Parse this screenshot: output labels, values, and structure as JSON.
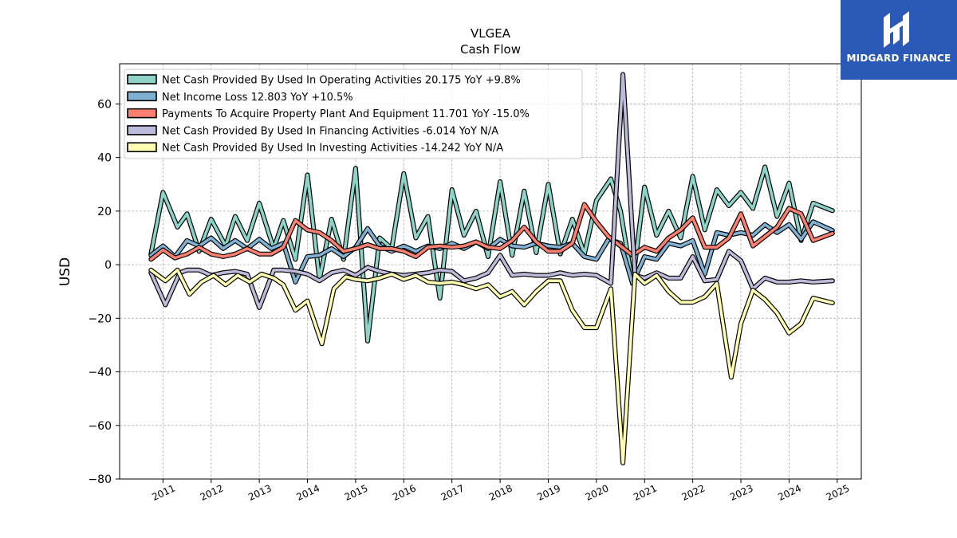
{
  "brand": {
    "name": "MIDGARD FINANCE",
    "color": "#2b59b8"
  },
  "chart_data": {
    "type": "line",
    "title": "VLGEA",
    "subtitle": "Cash Flow",
    "ylabel": "USD",
    "xlabel": "",
    "ylim": [
      -80,
      75
    ],
    "xlim": [
      2010.1,
      2025.5
    ],
    "yticks": [
      -80,
      -60,
      -40,
      -20,
      0,
      20,
      40,
      60
    ],
    "xticks": [
      2011,
      2012,
      2013,
      2014,
      2015,
      2016,
      2017,
      2018,
      2019,
      2020,
      2021,
      2022,
      2023,
      2024,
      2025
    ],
    "grid": true,
    "legend_position": "top-left",
    "series": [
      {
        "name": "Net Cash Provided By Used In Operating Activities",
        "legend": "Net Cash Provided By Used In Operating Activities  20.175 YoY +9.8%",
        "color": "#8dd3c7",
        "x": [
          2010.75,
          2011.0,
          2011.3,
          2011.5,
          2011.75,
          2012.0,
          2012.3,
          2012.5,
          2012.75,
          2013.0,
          2013.3,
          2013.5,
          2013.75,
          2014.0,
          2014.25,
          2014.5,
          2014.75,
          2015.0,
          2015.25,
          2015.5,
          2015.75,
          2016.0,
          2016.25,
          2016.5,
          2016.75,
          2017.0,
          2017.25,
          2017.5,
          2017.75,
          2018.0,
          2018.25,
          2018.5,
          2018.75,
          2019.0,
          2019.25,
          2019.5,
          2019.75,
          2020.0,
          2020.3,
          2020.5,
          2020.75,
          2021.0,
          2021.25,
          2021.5,
          2021.75,
          2022.0,
          2022.25,
          2022.5,
          2022.75,
          2023.0,
          2023.25,
          2023.5,
          2023.75,
          2024.0,
          2024.25,
          2024.5,
          2024.9
        ],
        "values": [
          4.0,
          27.0,
          14.0,
          19.0,
          5.0,
          17.0,
          7.0,
          18.0,
          9.0,
          23.0,
          6.0,
          16.5,
          2.0,
          33.5,
          -5.5,
          17.0,
          2.0,
          36.0,
          -28.5,
          10.0,
          6.0,
          34.0,
          10.0,
          18.0,
          -12.5,
          28.0,
          11.0,
          20.0,
          3.0,
          31.0,
          3.5,
          27.5,
          4.5,
          30.0,
          4.0,
          17.0,
          4.0,
          24.0,
          32.0,
          20.0,
          -7.0,
          29.0,
          11.0,
          20.0,
          10.0,
          33.0,
          13.0,
          28.0,
          22.0,
          27.0,
          21.0,
          36.5,
          18.0,
          30.5,
          9.0,
          23.0,
          20.175
        ]
      },
      {
        "name": "Net Income Loss",
        "legend": "Net Income Loss  12.803 YoY +10.5%",
        "color": "#80b1d3",
        "x": [
          2010.75,
          2011.0,
          2011.25,
          2011.5,
          2011.75,
          2012.0,
          2012.25,
          2012.5,
          2012.75,
          2013.0,
          2013.25,
          2013.5,
          2013.75,
          2014.0,
          2014.25,
          2014.5,
          2014.75,
          2015.0,
          2015.25,
          2015.5,
          2015.75,
          2016.0,
          2016.25,
          2016.5,
          2016.75,
          2017.0,
          2017.25,
          2017.5,
          2017.75,
          2018.0,
          2018.25,
          2018.5,
          2018.75,
          2019.0,
          2019.25,
          2019.5,
          2019.75,
          2020.0,
          2020.25,
          2020.5,
          2020.75,
          2021.0,
          2021.25,
          2021.5,
          2021.75,
          2022.0,
          2022.25,
          2022.5,
          2022.75,
          2023.0,
          2023.25,
          2023.5,
          2023.75,
          2024.0,
          2024.25,
          2024.5,
          2024.9
        ],
        "values": [
          3.5,
          7.0,
          3.0,
          9.0,
          7.0,
          10.0,
          6.0,
          9.0,
          6.0,
          9.5,
          6.0,
          8.0,
          -6.5,
          3.0,
          3.5,
          6.0,
          3.0,
          6.5,
          13.5,
          7.0,
          5.0,
          7.0,
          5.0,
          7.0,
          6.0,
          8.0,
          6.0,
          8.5,
          6.0,
          9.5,
          7.0,
          6.5,
          8.0,
          7.0,
          6.5,
          8.0,
          3.0,
          2.0,
          9.5,
          8.0,
          -7.0,
          3.0,
          2.0,
          8.0,
          7.0,
          9.0,
          -3.5,
          12.0,
          11.0,
          12.0,
          11.0,
          15.0,
          12.0,
          15.0,
          9.5,
          16.0,
          12.803
        ]
      },
      {
        "name": "Payments To Acquire Property Plant And Equipment",
        "legend": "Payments To Acquire Property Plant And Equipment  11.701 YoY -15.0%",
        "color": "#fb8072",
        "x": [
          2010.75,
          2011.0,
          2011.25,
          2011.5,
          2011.75,
          2012.0,
          2012.25,
          2012.5,
          2012.75,
          2013.0,
          2013.25,
          2013.5,
          2013.75,
          2014.0,
          2014.25,
          2014.5,
          2014.75,
          2015.0,
          2015.25,
          2015.5,
          2015.75,
          2016.0,
          2016.25,
          2016.5,
          2016.75,
          2017.0,
          2017.25,
          2017.5,
          2017.75,
          2018.0,
          2018.25,
          2018.5,
          2018.75,
          2019.0,
          2019.25,
          2019.5,
          2019.75,
          2020.0,
          2020.25,
          2020.5,
          2020.75,
          2021.0,
          2021.25,
          2021.5,
          2021.75,
          2022.0,
          2022.25,
          2022.5,
          2022.75,
          2023.0,
          2023.25,
          2023.5,
          2023.75,
          2024.0,
          2024.25,
          2024.5,
          2024.9
        ],
        "values": [
          2.0,
          5.5,
          2.5,
          4.0,
          6.5,
          4.0,
          3.0,
          4.0,
          6.0,
          4.0,
          4.0,
          6.5,
          16.5,
          13.0,
          12.0,
          9.0,
          5.0,
          6.0,
          7.5,
          6.0,
          6.0,
          5.0,
          3.0,
          6.5,
          7.0,
          6.5,
          7.0,
          8.5,
          6.5,
          6.0,
          9.0,
          14.0,
          8.5,
          5.0,
          5.0,
          8.0,
          22.5,
          16.0,
          10.5,
          7.0,
          3.5,
          6.5,
          5.0,
          10.0,
          13.0,
          17.5,
          6.5,
          6.5,
          10.0,
          19.0,
          7.0,
          10.5,
          14.0,
          21.0,
          19.0,
          9.0,
          11.701
        ]
      },
      {
        "name": "Net Cash Provided By Used In Financing Activities",
        "legend": "Net Cash Provided By Used In Financing Activities  -6.014 YoY N/A",
        "color": "#bebada",
        "x": [
          2010.75,
          2011.05,
          2011.35,
          2011.5,
          2011.75,
          2012.0,
          2012.25,
          2012.5,
          2012.75,
          2013.0,
          2013.3,
          2013.5,
          2013.75,
          2014.0,
          2014.25,
          2014.5,
          2014.75,
          2015.0,
          2015.25,
          2015.5,
          2015.75,
          2016.0,
          2016.25,
          2016.5,
          2016.75,
          2017.0,
          2017.25,
          2017.5,
          2017.75,
          2018.0,
          2018.25,
          2018.5,
          2018.75,
          2019.0,
          2019.25,
          2019.5,
          2019.75,
          2020.0,
          2020.3,
          2020.55,
          2020.8,
          2021.0,
          2021.25,
          2021.5,
          2021.75,
          2022.0,
          2022.25,
          2022.5,
          2022.75,
          2023.0,
          2023.25,
          2023.5,
          2023.75,
          2024.0,
          2024.25,
          2024.5,
          2024.9
        ],
        "values": [
          -3.0,
          -15.0,
          -3.0,
          -2.0,
          -2.0,
          -4.0,
          -3.0,
          -2.5,
          -3.5,
          -16.0,
          -2.0,
          -2.0,
          -2.5,
          -3.5,
          -6.0,
          -3.0,
          -2.0,
          -4.0,
          -1.0,
          -2.5,
          -3.5,
          -4.0,
          -3.5,
          -3.0,
          -2.0,
          -2.5,
          -6.0,
          -5.0,
          -3.0,
          3.5,
          -4.0,
          -3.5,
          -4.0,
          -4.0,
          -3.0,
          -4.0,
          -3.5,
          -4.0,
          -7.0,
          71.0,
          -4.0,
          -5.0,
          -3.0,
          -5.0,
          -5.0,
          3.0,
          -6.0,
          -5.5,
          5.0,
          1.5,
          -9.0,
          -5.0,
          -6.5,
          -6.5,
          -6.0,
          -6.5,
          -6.014
        ]
      },
      {
        "name": "Net Cash Provided By Used In Investing Activities",
        "legend": "Net Cash Provided By Used In Investing Activities  -14.242 YoY N/A",
        "color": "#ffffb3",
        "x": [
          2010.75,
          2011.05,
          2011.3,
          2011.55,
          2011.8,
          2012.05,
          2012.3,
          2012.55,
          2012.8,
          2013.05,
          2013.3,
          2013.5,
          2013.75,
          2014.0,
          2014.3,
          2014.55,
          2014.8,
          2015.0,
          2015.25,
          2015.5,
          2015.75,
          2016.0,
          2016.25,
          2016.5,
          2016.75,
          2017.0,
          2017.25,
          2017.5,
          2017.75,
          2018.0,
          2018.25,
          2018.5,
          2018.75,
          2019.0,
          2019.25,
          2019.5,
          2019.75,
          2020.0,
          2020.3,
          2020.55,
          2020.8,
          2021.0,
          2021.25,
          2021.5,
          2021.75,
          2022.0,
          2022.25,
          2022.5,
          2022.8,
          2023.0,
          2023.25,
          2023.5,
          2023.75,
          2024.0,
          2024.25,
          2024.5,
          2024.9
        ],
        "values": [
          -2.0,
          -6.0,
          -2.0,
          -11.0,
          -6.5,
          -4.0,
          -7.5,
          -4.0,
          -6.5,
          -3.5,
          -5.0,
          -7.5,
          -17.0,
          -13.5,
          -29.5,
          -9.0,
          -4.5,
          -5.5,
          -6.0,
          -5.0,
          -3.5,
          -5.5,
          -4.0,
          -6.5,
          -7.0,
          -6.5,
          -7.5,
          -9.0,
          -7.5,
          -12.0,
          -10.0,
          -15.0,
          -10.0,
          -6.0,
          -6.0,
          -17.0,
          -23.5,
          -23.5,
          -9.0,
          -74.0,
          -3.5,
          -7.0,
          -4.0,
          -10.0,
          -14.0,
          -14.0,
          -12.0,
          -7.0,
          -42.0,
          -22.0,
          -9.5,
          -13.0,
          -18.0,
          -25.5,
          -22.0,
          -12.5,
          -14.242
        ]
      }
    ]
  }
}
